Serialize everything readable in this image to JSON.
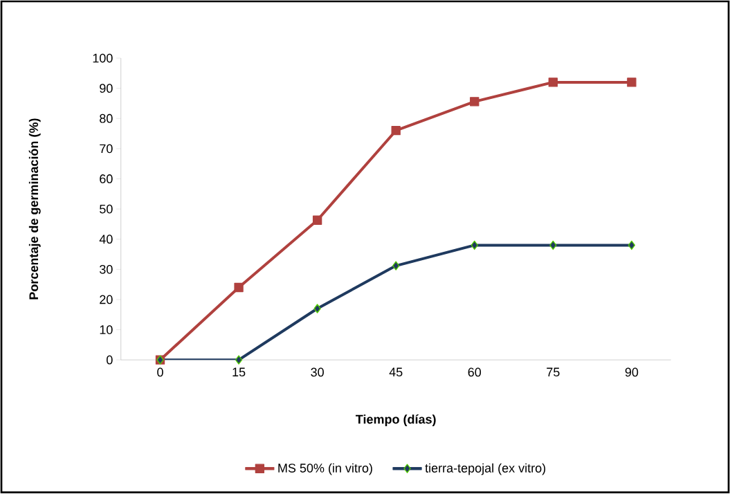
{
  "chart_data": {
    "type": "line",
    "xlabel": "Tiempo (días)",
    "ylabel": "Porcentaje de germinación (%)",
    "categories": [
      "0",
      "15",
      "30",
      "45",
      "60",
      "75",
      "90"
    ],
    "series": [
      {
        "name": "MS 50% (in vitro)",
        "color": "#b0413e",
        "marker": "square",
        "values": [
          0,
          24,
          46.3,
          76,
          85.6,
          92,
          92
        ]
      },
      {
        "name": "tierra-tepojal (ex vitro)",
        "color": "#1f3a5f",
        "marker": "diamond",
        "values": [
          0,
          0,
          17,
          31.2,
          38,
          38,
          38
        ]
      }
    ],
    "ylim": [
      0,
      100
    ],
    "yticks": [
      0,
      10,
      20,
      30,
      40,
      50,
      60,
      70,
      80,
      90,
      100
    ],
    "legend": "bottom"
  }
}
